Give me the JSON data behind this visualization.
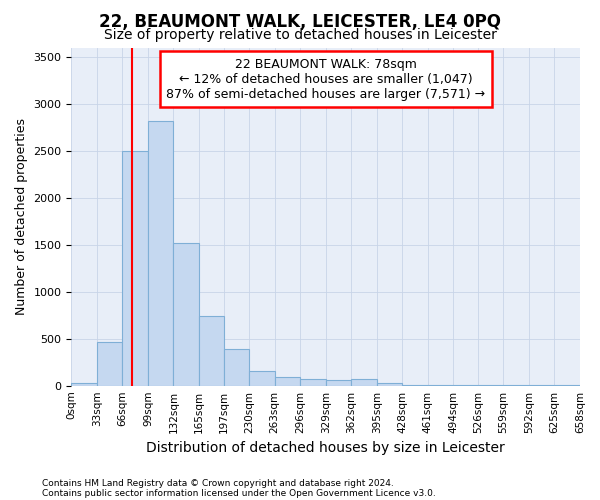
{
  "title": "22, BEAUMONT WALK, LEICESTER, LE4 0PQ",
  "subtitle": "Size of property relative to detached houses in Leicester",
  "xlabel": "Distribution of detached houses by size in Leicester",
  "ylabel": "Number of detached properties",
  "footnote1": "Contains HM Land Registry data © Crown copyright and database right 2024.",
  "footnote2": "Contains public sector information licensed under the Open Government Licence v3.0.",
  "annotation_title": "22 BEAUMONT WALK: 78sqm",
  "annotation_line1": "← 12% of detached houses are smaller (1,047)",
  "annotation_line2": "87% of semi-detached houses are larger (7,571) →",
  "property_size": 78,
  "bin_edges": [
    0,
    33,
    66,
    99,
    132,
    165,
    197,
    230,
    263,
    296,
    329,
    362,
    395,
    428,
    461,
    494,
    526,
    559,
    592,
    625,
    658
  ],
  "bar_values": [
    30,
    470,
    2500,
    2820,
    1520,
    740,
    390,
    155,
    90,
    70,
    60,
    70,
    30,
    5,
    5,
    5,
    2,
    2,
    2,
    2
  ],
  "bar_color": "#c5d8f0",
  "bar_edge_color": "#7fafd6",
  "vline_color": "red",
  "vline_x": 78,
  "ylim": [
    0,
    3600
  ],
  "yticks": [
    0,
    500,
    1000,
    1500,
    2000,
    2500,
    3000,
    3500
  ],
  "grid_color": "#c8d4e8",
  "bg_color": "#e8eef8",
  "title_fontsize": 12,
  "subtitle_fontsize": 10,
  "annotation_fontsize": 9,
  "ylabel_fontsize": 9,
  "xlabel_fontsize": 10
}
